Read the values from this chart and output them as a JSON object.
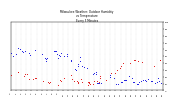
{
  "title_line1": "Milwaukee Weather: Outdoor Humidity",
  "title_line2": "vs Temperature",
  "title_line3": "Every 5 Minutes",
  "bg_color": "#ffffff",
  "blue_color": "#0000dd",
  "red_color": "#dd0000",
  "seed": 7,
  "n_time": 288,
  "ylim": [
    0,
    100
  ],
  "dot_size": 0.4,
  "grid_color": "#aaaaaa",
  "title_fontsize": 2.0,
  "tick_fontsize": 1.6
}
